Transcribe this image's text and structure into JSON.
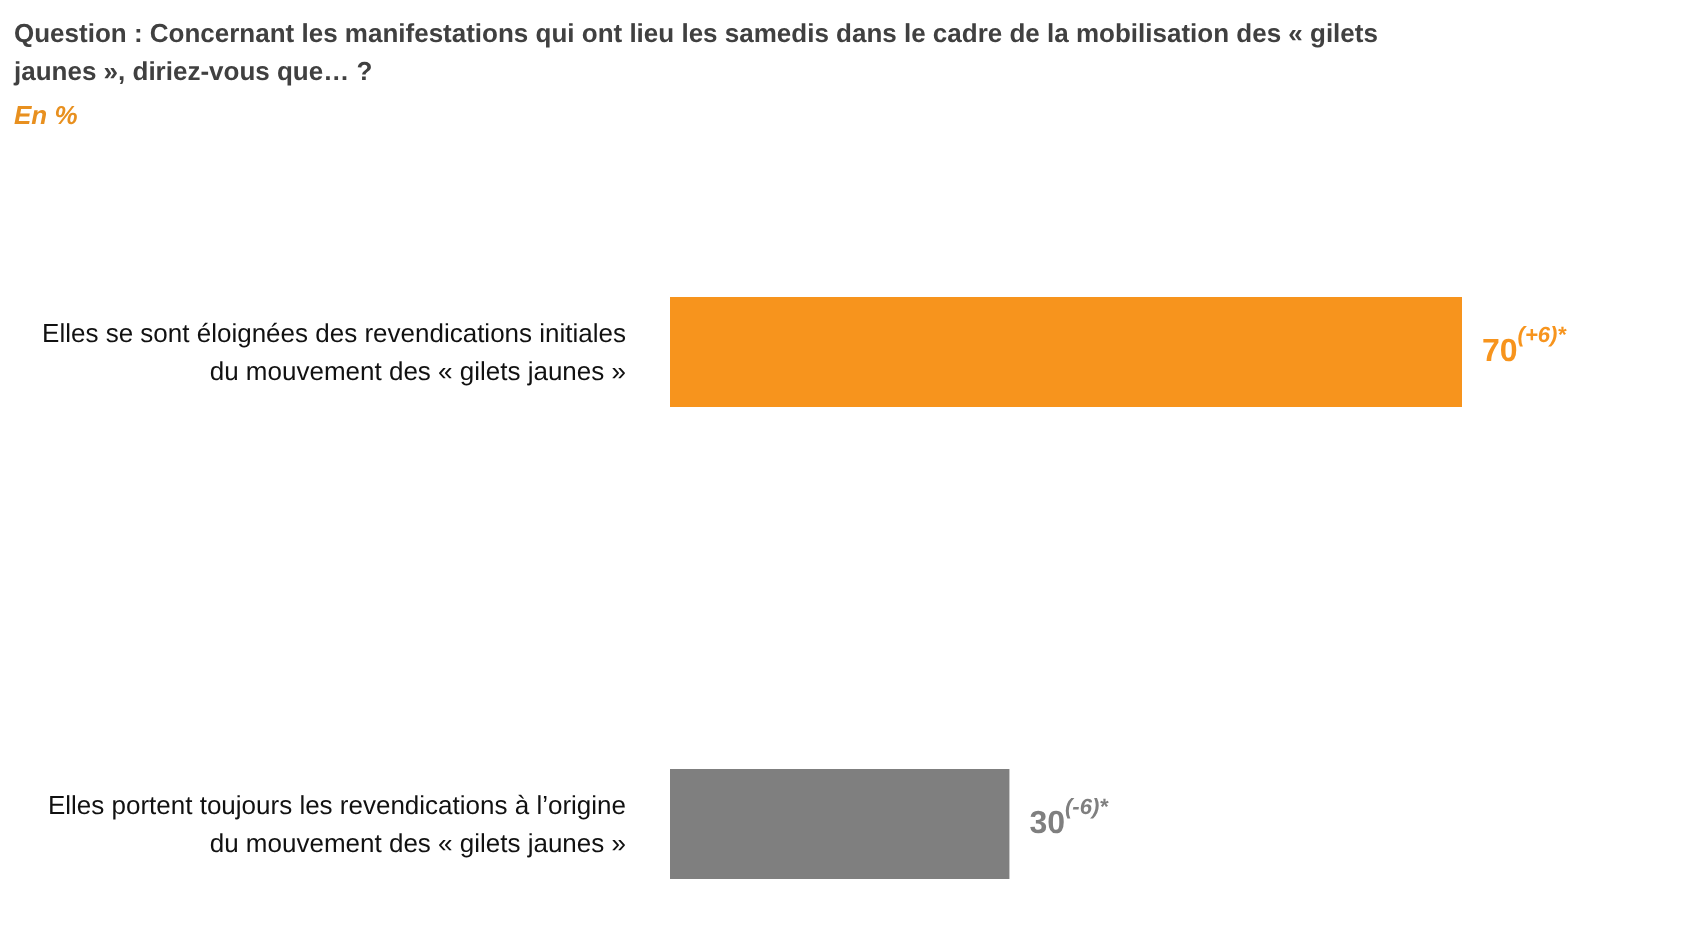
{
  "chart_data": {
    "type": "bar",
    "orientation": "horizontal",
    "title": "Question : Concernant les manifestations qui ont lieu les samedis dans le cadre de la mobilisation des « gilets jaunes », diriez-vous que… ?",
    "subtitle": "En %",
    "categories": [
      "Elles se sont éloignées des revendications initiales du mouvement des « gilets jaunes »",
      "Elles portent toujours les revendications à l’origine du mouvement des « gilets jaunes »"
    ],
    "values": [
      70,
      30
    ],
    "colors": [
      "#f7941d",
      "#7f7f7f"
    ],
    "value_labels": [
      "70$^{(+6)*}$",
      "30$^{(-6)*}$"
    ],
    "grid": false
  }
}
